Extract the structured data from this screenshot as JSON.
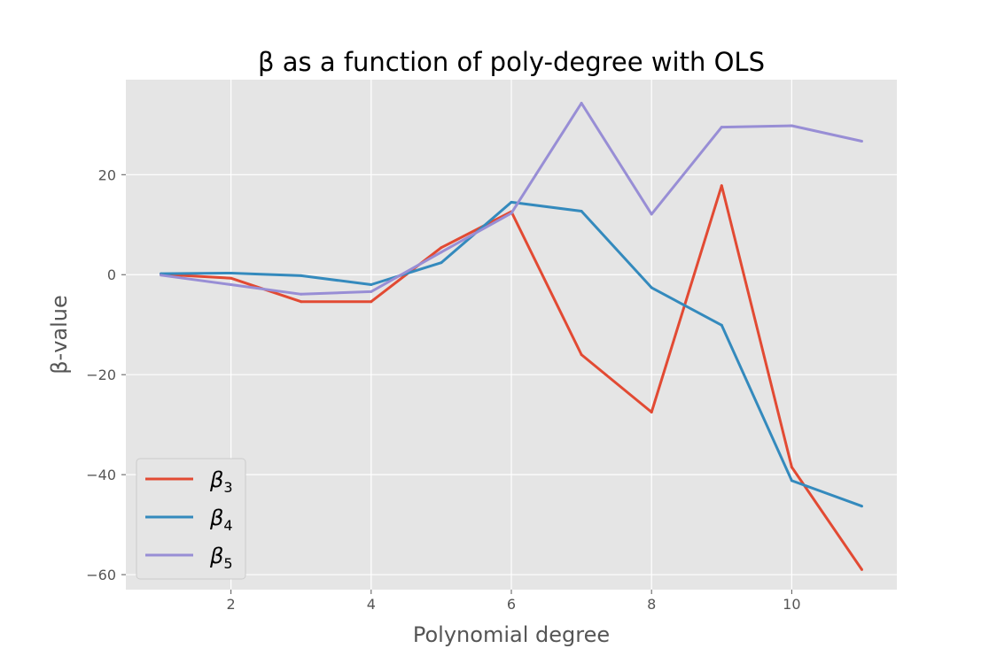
{
  "chart_data": {
    "type": "line",
    "title": "β as a function of poly-degree with OLS",
    "xlabel": "Polynomial degree",
    "ylabel": "β-value",
    "x": [
      1,
      2,
      3,
      4,
      5,
      6,
      7,
      8,
      9,
      10,
      11
    ],
    "xlim": [
      0.5,
      11.5
    ],
    "ylim": [
      -63,
      39
    ],
    "xticks": [
      2,
      4,
      6,
      8,
      10
    ],
    "yticks": [
      -60,
      -40,
      -20,
      0,
      20
    ],
    "grid": true,
    "legend_position": "lower-left",
    "series": [
      {
        "name": "β3",
        "base": "β",
        "sub": "3",
        "color": "#E24A33",
        "values": [
          0.1,
          -0.7,
          -5.4,
          -5.4,
          5.4,
          12.6,
          -16.0,
          -27.5,
          17.8,
          -38.5,
          -59.0
        ]
      },
      {
        "name": "β4",
        "base": "β",
        "sub": "4",
        "color": "#348ABD",
        "values": [
          0.2,
          0.3,
          -0.2,
          -2.0,
          2.4,
          14.5,
          12.7,
          -2.6,
          -10.1,
          -41.2,
          -46.3
        ]
      },
      {
        "name": "β5",
        "base": "β",
        "sub": "5",
        "color": "#988ED5",
        "values": [
          -0.1,
          -2.0,
          -3.9,
          -3.4,
          4.5,
          12.3,
          34.3,
          12.1,
          29.5,
          29.8,
          26.7
        ]
      }
    ]
  }
}
